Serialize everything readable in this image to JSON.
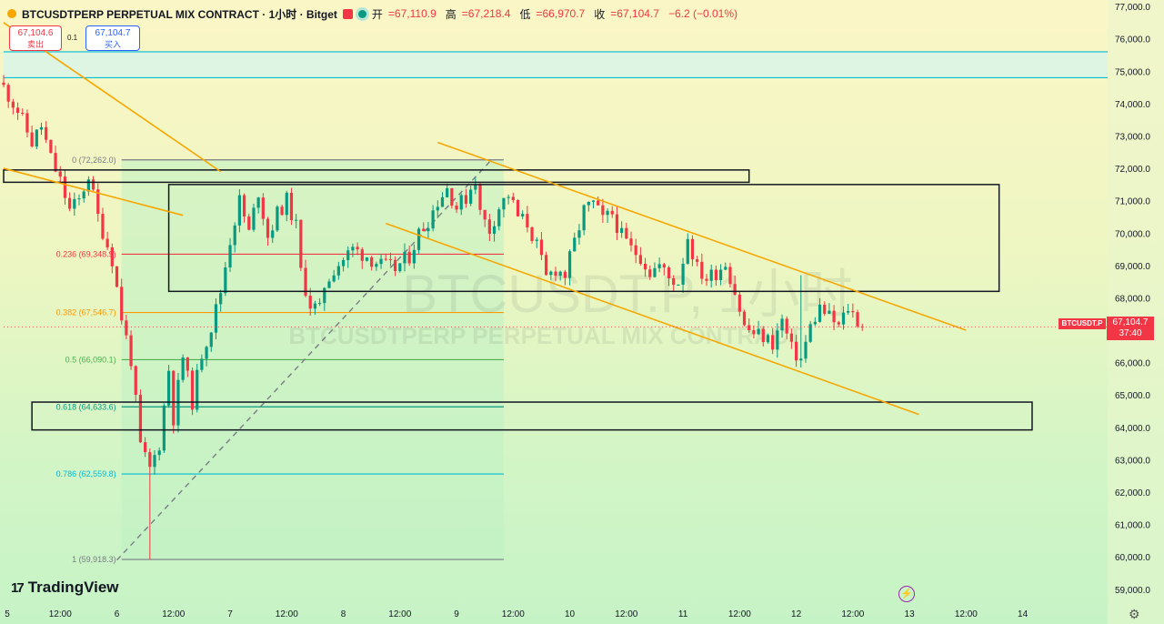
{
  "header": {
    "symbol": "BTCUSDTPERP PERPETUAL MIX CONTRACT · 1小时 · Bitget",
    "open_label": "开",
    "open": "=67,110.9",
    "high_label": "高",
    "high": "=67,218.4",
    "low_label": "低",
    "low": "=66,970.7",
    "close_label": "收",
    "close": "=67,104.7",
    "change": "−6.2 (−0.01%)"
  },
  "orders": {
    "sell_price": "67,104.6",
    "sell_label": "卖出",
    "buy_price": "67,104.7",
    "buy_label": "买入",
    "spread": "0.1"
  },
  "watermark": {
    "main": "BTCUSDT.P, 1小时",
    "sub": "BTCUSDTPERP PERPETUAL MIX CONTRACT"
  },
  "last_price": {
    "symbol": "BTCUSDT.P",
    "price": "67,104.7",
    "countdown": "37:40"
  },
  "branding": {
    "logo_text": "TradingView"
  },
  "colors": {
    "up": "#089981",
    "down": "#f23645",
    "trend": "#f7a600",
    "box": "#131722"
  },
  "chart_data": {
    "type": "candlestick",
    "timeframe": "1h",
    "ylim": [
      58600,
      77200
    ],
    "y_ticks": [
      59000,
      60000,
      61000,
      62000,
      63000,
      64000,
      65000,
      66000,
      67000,
      68000,
      69000,
      70000,
      71000,
      72000,
      73000,
      74000,
      75000,
      76000,
      77000
    ],
    "y_tick_labels": [
      "59,000.0",
      "60,000.0",
      "61,000.0",
      "62,000.0",
      "63,000.0",
      "64,000.0",
      "65,000.0",
      "66,000.0",
      "67,000.0",
      "68,000.0",
      "69,000.0",
      "70,000.0",
      "71,000.0",
      "72,000.0",
      "73,000.0",
      "74,000.0",
      "75,000.0",
      "76,000.0",
      "77,000.0"
    ],
    "x_range_hours": [
      0,
      234
    ],
    "x_ticks": [
      {
        "h": 0,
        "label": "5"
      },
      {
        "h": 12,
        "label": "12:00"
      },
      {
        "h": 24,
        "label": "6"
      },
      {
        "h": 36,
        "label": "12:00"
      },
      {
        "h": 48,
        "label": "7"
      },
      {
        "h": 60,
        "label": "12:00"
      },
      {
        "h": 72,
        "label": "8"
      },
      {
        "h": 84,
        "label": "12:00"
      },
      {
        "h": 96,
        "label": "9"
      },
      {
        "h": 108,
        "label": "12:00"
      },
      {
        "h": 120,
        "label": "10"
      },
      {
        "h": 132,
        "label": "12:00"
      },
      {
        "h": 144,
        "label": "11"
      },
      {
        "h": 156,
        "label": "12:00"
      },
      {
        "h": 168,
        "label": "12"
      },
      {
        "h": 180,
        "label": "12:00"
      },
      {
        "h": 192,
        "label": "13"
      },
      {
        "h": 204,
        "label": "12:00"
      },
      {
        "h": 216,
        "label": "14"
      }
    ],
    "close_path": [
      [
        0,
        74500
      ],
      [
        3,
        73800
      ],
      [
        6,
        72800
      ],
      [
        8,
        73300
      ],
      [
        10,
        72300
      ],
      [
        12,
        71600
      ],
      [
        14,
        70700
      ],
      [
        16,
        71000
      ],
      [
        18,
        71800
      ],
      [
        20,
        70500
      ],
      [
        23,
        69200
      ],
      [
        25,
        67400
      ],
      [
        27,
        66100
      ],
      [
        29,
        63400
      ],
      [
        31,
        62700
      ],
      [
        33,
        63500
      ],
      [
        35,
        65800
      ],
      [
        36,
        64300
      ],
      [
        38,
        66200
      ],
      [
        40,
        64800
      ],
      [
        42,
        66300
      ],
      [
        44,
        67100
      ],
      [
        46,
        68200
      ],
      [
        48,
        69800
      ],
      [
        50,
        71000
      ],
      [
        52,
        70000
      ],
      [
        54,
        71300
      ],
      [
        56,
        69900
      ],
      [
        58,
        70600
      ],
      [
        60,
        71000
      ],
      [
        62,
        70200
      ],
      [
        63,
        68800
      ],
      [
        65,
        67800
      ],
      [
        67,
        67600
      ],
      [
        68,
        68400
      ],
      [
        70,
        68900
      ],
      [
        72,
        69200
      ],
      [
        74,
        69500
      ],
      [
        77,
        69300
      ],
      [
        80,
        69000
      ],
      [
        83,
        68900
      ],
      [
        86,
        69300
      ],
      [
        88,
        70000
      ],
      [
        90,
        70400
      ],
      [
        92,
        71000
      ],
      [
        94,
        71400
      ],
      [
        96,
        70800
      ],
      [
        98,
        71100
      ],
      [
        100,
        71700
      ],
      [
        101,
        70600
      ],
      [
        103,
        70100
      ],
      [
        105,
        70800
      ],
      [
        107,
        71200
      ],
      [
        109,
        70500
      ],
      [
        111,
        70300
      ],
      [
        113,
        69600
      ],
      [
        115,
        68600
      ],
      [
        117,
        68900
      ],
      [
        119,
        68700
      ],
      [
        121,
        69700
      ],
      [
        123,
        70700
      ],
      [
        125,
        70900
      ],
      [
        127,
        70400
      ],
      [
        129,
        70600
      ],
      [
        131,
        69900
      ],
      [
        133,
        69500
      ],
      [
        135,
        69300
      ],
      [
        137,
        68800
      ],
      [
        139,
        69000
      ],
      [
        141,
        68600
      ],
      [
        143,
        68500
      ],
      [
        145,
        69900
      ],
      [
        147,
        68900
      ],
      [
        149,
        68600
      ],
      [
        151,
        68800
      ],
      [
        153,
        69100
      ],
      [
        155,
        68200
      ],
      [
        157,
        67100
      ],
      [
        159,
        66900
      ],
      [
        161,
        66800
      ],
      [
        163,
        66600
      ],
      [
        165,
        67300
      ],
      [
        167,
        66400
      ],
      [
        169,
        66100
      ],
      [
        171,
        67100
      ],
      [
        173,
        67700
      ],
      [
        175,
        67400
      ],
      [
        177,
        67100
      ],
      [
        179,
        67700
      ],
      [
        181,
        67300
      ],
      [
        182,
        67104.7
      ]
    ],
    "fibonacci": [
      {
        "ratio": "0",
        "price": 72262.0,
        "label": "0 (72,262.0)",
        "color": "#787b86"
      },
      {
        "ratio": "0.236",
        "price": 69348.9,
        "label": "0.236 (69,348.9)",
        "color": "#f23645"
      },
      {
        "ratio": "0.382",
        "price": 67546.7,
        "label": "0.382 (67,546.7)",
        "color": "#ff9800"
      },
      {
        "ratio": "0.5",
        "price": 66090.1,
        "label": "0.5 (66,090.1)",
        "color": "#4caf50"
      },
      {
        "ratio": "0.618",
        "price": 64633.6,
        "label": "0.618 (64,633.6)",
        "color": "#089981"
      },
      {
        "ratio": "0.786",
        "price": 62559.8,
        "label": "0.786 (62,559.8)",
        "color": "#00bcd4"
      },
      {
        "ratio": "1",
        "price": 59918.3,
        "label": "1 (59,918.3)",
        "color": "#787b86"
      }
    ],
    "fib_range_hours": [
      25,
      106
    ],
    "horizontal_lines": [
      75600,
      74800
    ],
    "zone_band": [
      74800,
      75600
    ],
    "boxes": [
      {
        "h1": 0,
        "h2": 158,
        "p_top": 71950,
        "p_bottom": 71570
      },
      {
        "h1": 35,
        "h2": 211,
        "p_top": 71500,
        "p_bottom": 68200
      },
      {
        "h1": 6,
        "h2": 218,
        "p_top": 64780,
        "p_bottom": 63920
      }
    ],
    "trendlines": [
      {
        "h1": 0,
        "p1": 76500,
        "h2": 46,
        "p2": 71900
      },
      {
        "h1": 0,
        "p1": 72000,
        "h2": 38,
        "p2": 70550
      },
      {
        "h1": 92,
        "p1": 72800,
        "h2": 204,
        "p2": 67000
      },
      {
        "h1": 81,
        "p1": 70300,
        "h2": 194,
        "p2": 64400
      }
    ],
    "dashed_line": {
      "h1": 24,
      "p1": 59900,
      "h2": 103,
      "p2": 72200
    },
    "last_price": 67104.7
  }
}
